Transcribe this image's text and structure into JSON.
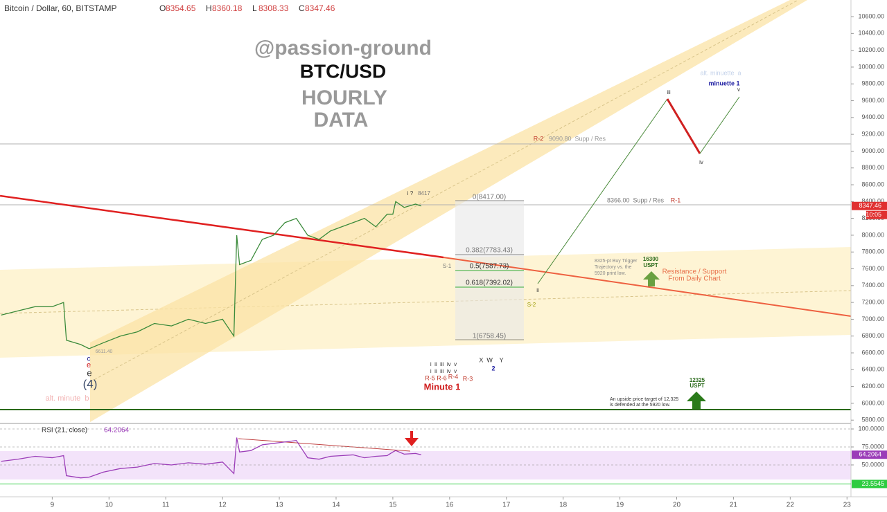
{
  "header": {
    "symbol": "Bitcoin / Dollar, 60, BITSTAMP",
    "ohlc": [
      {
        "key": "O",
        "value": 8354.65
      },
      {
        "key": "H",
        "value": 8360.18
      },
      {
        "key": "L",
        "value": 8308.33
      },
      {
        "key": "C",
        "value": 8347.46
      }
    ],
    "countdown": "10:05"
  },
  "chart_data": [
    {
      "type": "line",
      "xlim": [
        8.08,
        23.07
      ],
      "xticks": [
        9,
        10,
        11,
        12,
        13,
        14,
        15,
        16,
        17,
        18,
        19,
        20,
        21,
        22,
        23
      ],
      "ylim": [
        5777,
        10798
      ],
      "yticks": [
        {
          "value": 5800,
          "label": "5800.00"
        },
        {
          "value": 6000,
          "label": "6000.00"
        },
        {
          "value": 6200,
          "label": "6200.00"
        },
        {
          "value": 6400,
          "label": "6400.00"
        },
        {
          "value": 6600,
          "label": "6600.00"
        },
        {
          "value": 6800,
          "label": "6800.00"
        },
        {
          "value": 7000,
          "label": "7000.00"
        },
        {
          "value": 7200,
          "label": "7200.00"
        },
        {
          "value": 7400,
          "label": "7400.00"
        },
        {
          "value": 7600,
          "label": "7600.00"
        },
        {
          "value": 7800,
          "label": "7800.00"
        },
        {
          "value": 8000,
          "label": "8000.00"
        },
        {
          "value": 8200,
          "label": "8200.00"
        },
        {
          "value": 8400,
          "label": "8400.00"
        },
        {
          "value": 8600,
          "label": "8600.00"
        },
        {
          "value": 8800,
          "label": "8800.00"
        },
        {
          "value": 9000,
          "label": "9000.00"
        },
        {
          "value": 9200,
          "label": "9200.00"
        },
        {
          "value": 9400,
          "label": "9400.00"
        },
        {
          "value": 9600,
          "label": "9600.00"
        },
        {
          "value": 9800,
          "label": "9800.00"
        },
        {
          "value": 10000,
          "label": "10000.00"
        },
        {
          "value": 10200,
          "label": "10200.00"
        },
        {
          "value": 10400,
          "label": "10400.00"
        },
        {
          "value": 10600,
          "label": "10600.00"
        }
      ],
      "x": [
        8.1,
        8.4,
        8.7,
        9.0,
        9.2,
        9.25,
        9.5,
        9.65,
        9.9,
        10.2,
        10.5,
        10.8,
        11.1,
        11.4,
        11.7,
        12.0,
        12.2,
        12.25,
        12.3,
        12.5,
        12.7,
        12.9,
        13.1,
        13.3,
        13.5,
        13.7,
        13.9,
        14.1,
        14.3,
        14.5,
        14.7,
        14.9,
        15.0,
        15.05,
        15.2,
        15.4,
        15.5
      ],
      "series": [
        {
          "color": "#3a8a3a",
          "values": [
            7050,
            7100,
            7150,
            7150,
            7200,
            6750,
            6700,
            6650,
            6720,
            6800,
            6850,
            6950,
            6920,
            7000,
            6950,
            7000,
            6800,
            8000,
            7650,
            7700,
            7950,
            8000,
            8150,
            8200,
            8000,
            7950,
            8050,
            8100,
            8150,
            8200,
            8100,
            8250,
            8250,
            8400,
            8330,
            8370,
            8347.46
          ]
        }
      ]
    },
    {
      "type": "line",
      "title": "RSI (21, close)",
      "xlim": [
        8.08,
        23.07
      ],
      "ylim": [
        11.5,
        107.7
      ],
      "yticks": [
        {
          "value": 100,
          "label": "100.0000"
        },
        {
          "value": 75,
          "label": "75.0000"
        },
        {
          "value": 50,
          "label": "50.0000"
        }
      ],
      "levels": [
        23.5545
      ],
      "x": [
        8.1,
        8.4,
        8.7,
        9.0,
        9.2,
        9.25,
        9.5,
        9.65,
        9.9,
        10.2,
        10.5,
        10.8,
        11.1,
        11.4,
        11.7,
        12.0,
        12.2,
        12.25,
        12.3,
        12.5,
        12.7,
        12.9,
        13.1,
        13.3,
        13.5,
        13.7,
        13.9,
        14.1,
        14.3,
        14.5,
        14.7,
        14.9,
        15.0,
        15.05,
        15.2,
        15.4,
        15.5
      ],
      "series": [
        {
          "color": "#9b3db8",
          "values": [
            55,
            58,
            62,
            60,
            63,
            35,
            32,
            33,
            40,
            45,
            47,
            52,
            50,
            53,
            51,
            54,
            38,
            88,
            68,
            70,
            78,
            80,
            82,
            84,
            60,
            58,
            62,
            63,
            64,
            60,
            62,
            63,
            68,
            70,
            65,
            66,
            64.2064
          ]
        }
      ]
    }
  ],
  "annotations": [
    "@passion-ground",
    "BTC/USD",
    "HOURLY",
    "DATA",
    "alt. minuette  a",
    "minuette 1",
    "v",
    "iii",
    "iv",
    "R-2",
    "9090.80  Supp / Res",
    "i ?",
    "8417",
    "0(8417.00)",
    "8366.00  Supp / Res",
    "R-1",
    "0.382(7783.43)",
    "S-1",
    "0.5(7587.73)",
    "0.618(7392.02)",
    "1(6758.45)",
    "ii",
    "S-2",
    "8325-pt Buy Trigger",
    "Trajectory vs. the",
    "5920 print low.",
    "16300",
    "USPT",
    "Resistance / Support",
    "From Daily Chart",
    "6611.40",
    "c",
    "e",
    "e",
    "(4)",
    "alt. minute  b",
    "i  ii  iii  iv  v",
    "i  ii  iii  iv  v",
    "X  W    Y",
    "2",
    "R-5 R-6",
    "R-4",
    "R-3",
    "Minute 1",
    "12325",
    "USPT",
    "An upside price target of 12,325",
    "is defended at the 5920 low."
  ]
}
